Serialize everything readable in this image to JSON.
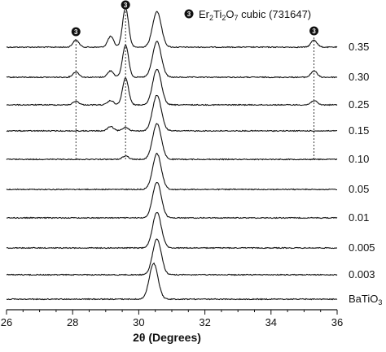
{
  "chart_data": {
    "type": "line",
    "xlabel": "2θ (Degrees)",
    "xlim": [
      26,
      36
    ],
    "x_ticks": [
      26,
      28,
      30,
      32,
      34,
      36
    ],
    "x_tick_labels": [
      "26",
      "28",
      "30",
      "32",
      "34",
      "36"
    ],
    "y_axis_visible": false,
    "stacked_offsets": true,
    "legend": {
      "marker": "3",
      "text": "Er2Ti2O7 cubic (731647)",
      "position": "top-right"
    },
    "reference_lines": [
      28.1,
      29.6,
      35.3
    ],
    "reference_markers": [
      {
        "label": "3",
        "x": 28.1
      },
      {
        "label": "3",
        "x": 29.6
      },
      {
        "label": "3",
        "x": 35.3
      }
    ],
    "main_peak_center": 30.55,
    "series": [
      {
        "name": "0.35",
        "peaks": [
          {
            "x": 30.55,
            "h": 1.0
          },
          {
            "x": 29.6,
            "h": 1.1
          },
          {
            "x": 29.15,
            "h": 0.3
          },
          {
            "x": 28.1,
            "h": 0.2
          },
          {
            "x": 35.3,
            "h": 0.2
          }
        ]
      },
      {
        "name": "0.30",
        "peaks": [
          {
            "x": 30.55,
            "h": 1.0
          },
          {
            "x": 29.6,
            "h": 0.9
          },
          {
            "x": 29.15,
            "h": 0.18
          },
          {
            "x": 28.1,
            "h": 0.15
          },
          {
            "x": 35.3,
            "h": 0.18
          }
        ]
      },
      {
        "name": "0.25",
        "peaks": [
          {
            "x": 30.55,
            "h": 1.0
          },
          {
            "x": 29.6,
            "h": 0.75
          },
          {
            "x": 29.15,
            "h": 0.12
          },
          {
            "x": 28.1,
            "h": 0.1
          },
          {
            "x": 35.3,
            "h": 0.12
          }
        ]
      },
      {
        "name": "0.15",
        "peaks": [
          {
            "x": 30.55,
            "h": 1.0
          },
          {
            "x": 29.6,
            "h": 0.1
          },
          {
            "x": 29.15,
            "h": 0.12
          }
        ]
      },
      {
        "name": "0.10",
        "peaks": [
          {
            "x": 30.55,
            "h": 1.0
          },
          {
            "x": 29.6,
            "h": 0.1
          }
        ]
      },
      {
        "name": "0.05",
        "peaks": [
          {
            "x": 30.55,
            "h": 1.0
          }
        ]
      },
      {
        "name": "0.01",
        "peaks": [
          {
            "x": 30.55,
            "h": 1.0
          }
        ]
      },
      {
        "name": "0.005",
        "peaks": [
          {
            "x": 30.55,
            "h": 1.0
          }
        ]
      },
      {
        "name": "0.003",
        "peaks": [
          {
            "x": 30.55,
            "h": 1.0
          }
        ]
      },
      {
        "name": "BaTiO3",
        "peaks": [
          {
            "x": 30.45,
            "h": 1.0
          }
        ]
      }
    ]
  }
}
